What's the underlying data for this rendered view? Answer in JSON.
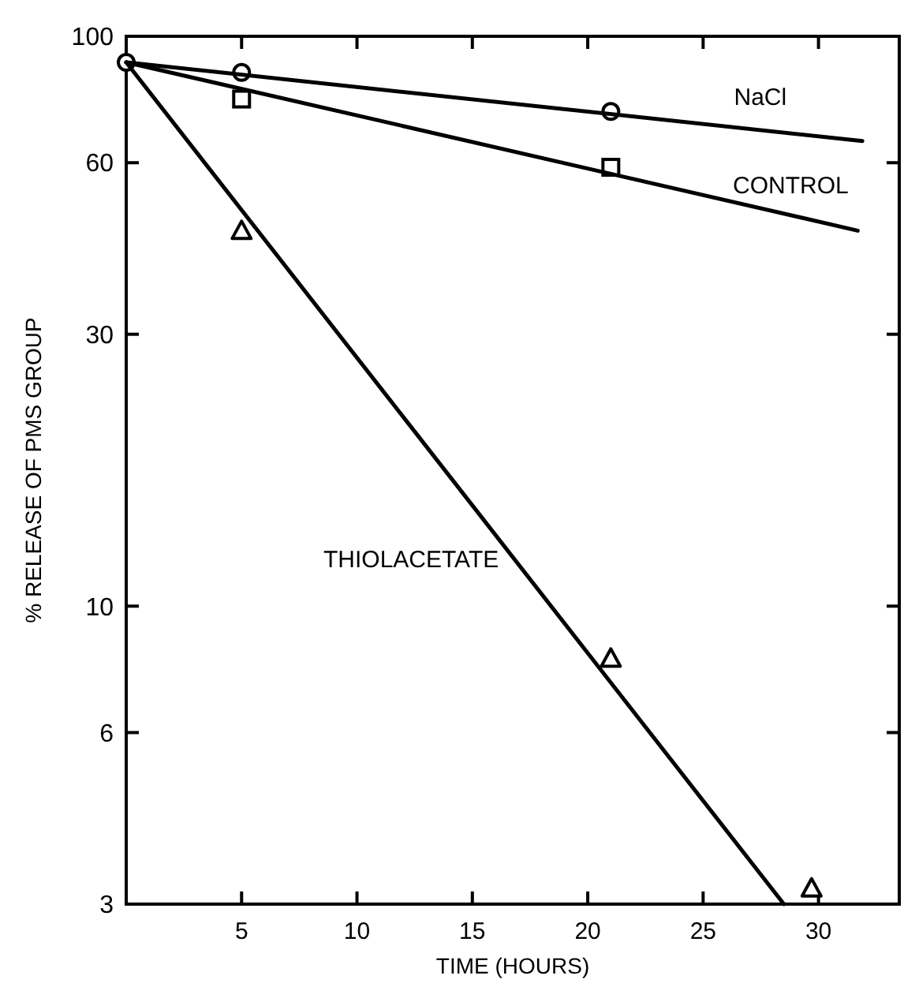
{
  "chart_data": {
    "type": "scatter",
    "xlabel": "TIME (HOURS)",
    "ylabel": "% RELEASE OF PMS GROUP",
    "log": "y",
    "grid": false,
    "xlim": [
      0,
      33.5
    ],
    "ylim": [
      3,
      100
    ],
    "xticks": [
      5,
      10,
      15,
      20,
      25,
      30
    ],
    "yticks": [
      3,
      6,
      10,
      30,
      60,
      100
    ],
    "series": [
      {
        "marker": "circle",
        "color": "#000000",
        "x": [
          0,
          5,
          21
        ],
        "values": [
          90,
          86.4,
          73.8
        ]
      },
      {
        "marker": "square",
        "color": "#000000",
        "x": [
          5,
          21
        ],
        "values": [
          77.6,
          58.9
        ]
      },
      {
        "marker": "triangle",
        "color": "#000000",
        "x": [
          5,
          21,
          29.7
        ],
        "values": [
          45.6,
          8.1,
          3.2
        ]
      },
      {
        "type": "line",
        "name": "NaCl",
        "color": "#000000",
        "x": [
          0,
          31.9
        ],
        "values": [
          90,
          65.5
        ]
      },
      {
        "type": "line",
        "name": "CONTROL",
        "color": "#000000",
        "x": [
          0,
          31.7
        ],
        "values": [
          90,
          45.6
        ]
      },
      {
        "type": "line",
        "name": "THIOLACETATE",
        "color": "#000000",
        "x": [
          0,
          28.5
        ],
        "values": [
          90,
          3
        ]
      }
    ]
  }
}
